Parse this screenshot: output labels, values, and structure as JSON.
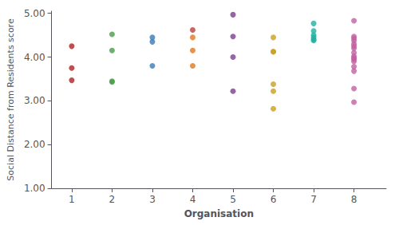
{
  "chart_data": {
    "type": "scatter",
    "xlabel": "Organisation",
    "ylabel": "Social Distance from Residents score",
    "x": [
      1,
      1,
      1,
      2,
      2,
      2,
      2,
      3,
      3,
      3,
      4,
      4,
      4,
      4,
      5,
      5,
      5,
      5,
      6,
      6,
      6,
      6,
      6,
      6,
      7,
      7,
      7,
      7,
      7,
      7,
      8,
      8,
      8,
      8,
      8,
      8,
      8,
      8,
      8,
      8,
      8,
      8,
      8,
      8,
      8,
      8
    ],
    "values": [
      4.25,
      3.75,
      3.47,
      4.52,
      4.15,
      3.45,
      3.43,
      4.45,
      4.35,
      3.8,
      4.62,
      4.45,
      4.15,
      3.8,
      4.97,
      4.47,
      4.0,
      3.22,
      4.45,
      4.13,
      4.12,
      3.38,
      3.22,
      2.82,
      4.77,
      4.6,
      4.5,
      4.45,
      4.4,
      4.38,
      4.83,
      4.47,
      4.43,
      4.38,
      4.3,
      4.25,
      4.2,
      4.1,
      4.02,
      3.98,
      3.95,
      3.9,
      3.78,
      3.68,
      3.28,
      2.97
    ],
    "colors": [
      "#b22222",
      "#b22222",
      "#b22222",
      "#4a9e4a",
      "#4a9e4a",
      "#4a9e4a",
      "#4a9e4a",
      "#3a7ab8",
      "#3a7ab8",
      "#3a7ab8",
      "#b84040",
      "#e07820",
      "#e07820",
      "#e07820",
      "#7b3f8e",
      "#7b3f8e",
      "#7b3f8e",
      "#7b3f8e",
      "#c8a020",
      "#c8a020",
      "#c8a020",
      "#c8a020",
      "#c8a020",
      "#c8a020",
      "#20b0a0",
      "#20b0a0",
      "#20b0a0",
      "#20b0a0",
      "#20b0a0",
      "#20b0a0",
      "#c060a0",
      "#c060a0",
      "#c060a0",
      "#c060a0",
      "#c060a0",
      "#c060a0",
      "#c060a0",
      "#c060a0",
      "#c060a0",
      "#c060a0",
      "#c060a0",
      "#c060a0",
      "#c060a0",
      "#c060a0",
      "#c060a0",
      "#c060a0"
    ],
    "marker": "o",
    "xlim": [
      0.5,
      8.8
    ],
    "ylim": [
      1.0,
      5.05
    ],
    "xticks": [
      1,
      2,
      3,
      4,
      5,
      6,
      7,
      8
    ],
    "yticks": [
      {
        "value": 1.0,
        "label": "1.00"
      },
      {
        "value": 2.0,
        "label": "2.00"
      },
      {
        "value": 3.0,
        "label": "3.00"
      },
      {
        "value": 4.0,
        "label": "4.00"
      },
      {
        "value": 5.0,
        "label": "5.00"
      }
    ],
    "grid": false
  }
}
